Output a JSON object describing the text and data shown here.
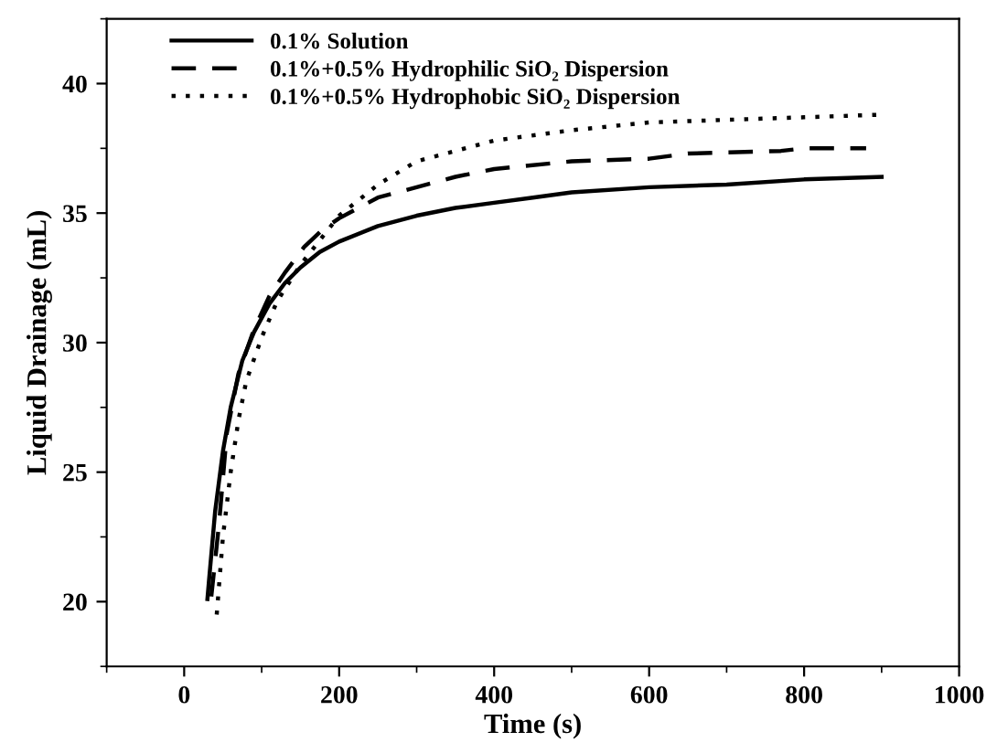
{
  "chart_data": {
    "type": "line",
    "xlabel": "Time (s)",
    "ylabel": "Liquid Drainage (mL)",
    "xlim": [
      -100,
      1000
    ],
    "ylim": [
      17.5,
      42.5
    ],
    "xticks": [
      0,
      200,
      400,
      600,
      800,
      1000
    ],
    "yticks": [
      20,
      25,
      30,
      35,
      40
    ],
    "grid": false,
    "legend": "top left",
    "series": [
      {
        "name": "0.1% Solution",
        "color": "#000000",
        "line_style": "solid",
        "x": [
          30,
          32,
          40,
          50,
          60,
          75,
          90,
          110,
          130,
          150,
          175,
          200,
          250,
          300,
          350,
          400,
          450,
          500,
          600,
          700,
          800,
          900
        ],
        "values": [
          20.1,
          20.8,
          23.5,
          25.8,
          27.5,
          29.3,
          30.4,
          31.5,
          32.3,
          32.9,
          33.5,
          33.9,
          34.5,
          34.9,
          35.2,
          35.4,
          35.6,
          35.8,
          36.0,
          36.1,
          36.3,
          36.4
        ]
      },
      {
        "name": "0.1%+0.5% Hydrophilic SiO₂ Dispersion",
        "color": "#000000",
        "line_style": "dashed",
        "x": [
          35,
          45,
          55,
          70,
          90,
          110,
          130,
          155,
          180,
          200,
          250,
          300,
          350,
          400,
          500,
          600,
          650,
          770,
          800,
          880
        ],
        "values": [
          20.2,
          23,
          26.5,
          28.8,
          30.5,
          31.8,
          32.7,
          33.7,
          34.4,
          34.8,
          35.6,
          36.0,
          36.4,
          36.7,
          37.0,
          37.1,
          37.3,
          37.4,
          37.5,
          37.5
        ]
      },
      {
        "name": "0.1%+0.5% Hydrophobic SiO₂ Dispersion",
        "color": "#000000",
        "line_style": "dotted",
        "x": [
          42,
          50,
          60,
          70,
          80,
          100,
          120,
          150,
          200,
          250,
          300,
          350,
          400,
          500,
          600,
          700,
          800,
          900
        ],
        "values": [
          19.5,
          22.5,
          25,
          27,
          28.5,
          30.2,
          31.6,
          33.0,
          34.9,
          36.1,
          37.0,
          37.4,
          37.8,
          38.2,
          38.5,
          38.6,
          38.7,
          38.8
        ]
      }
    ]
  }
}
